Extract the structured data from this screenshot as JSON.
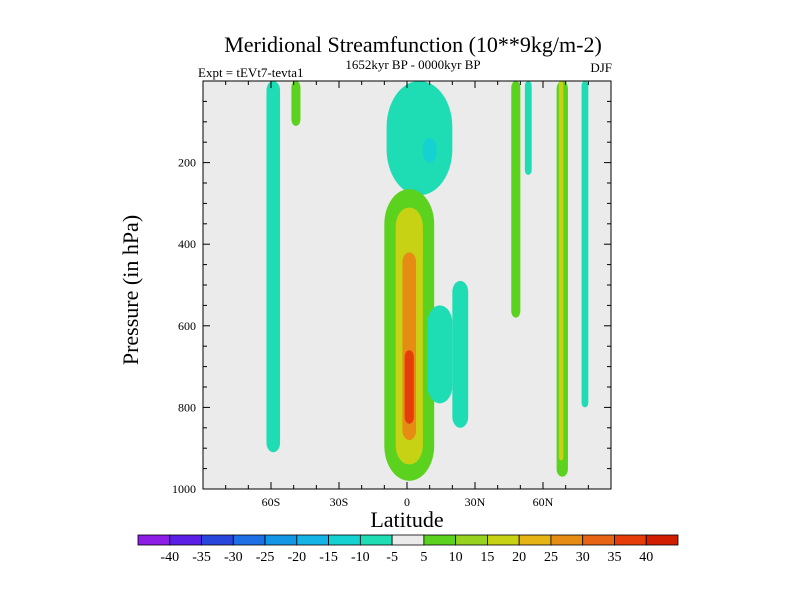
{
  "chart_data": {
    "type": "filled-contour",
    "title": "Meridional Streamfunction (10**9kg/m-2)",
    "left_label": "Expt = tEVt7-tevta1",
    "center_label": "1652kyr BP - 0000kyr BP",
    "right_label": "DJF",
    "xlabel": "Latitude",
    "ylabel": "Pressure (in hPa)",
    "x_range": [
      -90,
      90
    ],
    "y_range": [
      1000,
      0
    ],
    "x_ticks": [
      {
        "value": -60,
        "label": "60S"
      },
      {
        "value": -30,
        "label": "30S"
      },
      {
        "value": 0,
        "label": "0"
      },
      {
        "value": 30,
        "label": "30N"
      },
      {
        "value": 60,
        "label": "60N"
      }
    ],
    "y_ticks": [
      {
        "value": 200,
        "label": "200"
      },
      {
        "value": 400,
        "label": "400"
      },
      {
        "value": 600,
        "label": "600"
      },
      {
        "value": 800,
        "label": "800"
      },
      {
        "value": 1000,
        "label": "1000"
      }
    ],
    "colorbar": {
      "levels": [
        "-40",
        "-35",
        "-30",
        "-25",
        "-20",
        "-15",
        "-10",
        "-5",
        "5",
        "10",
        "15",
        "20",
        "25",
        "30",
        "35",
        "40"
      ],
      "colors": [
        "#8c1ee6",
        "#5a1ee6",
        "#2846dc",
        "#1e6ee6",
        "#1496e6",
        "#14b4e6",
        "#14d2d2",
        "#1edcb4",
        "#ebebeb",
        "#5ad21e",
        "#96d21e",
        "#c8d214",
        "#e6b414",
        "#e68c14",
        "#e66414",
        "#e63c0a",
        "#d21e00"
      ]
    },
    "features": [
      {
        "label": "Southern Hemisphere high-latitude column",
        "level": -5,
        "lat_range": [
          -62,
          -56
        ],
        "p_range": [
          0,
          910
        ]
      },
      {
        "label": "Southern Hemisphere upper patch",
        "level": 5,
        "lat_range": [
          -51,
          -47
        ],
        "p_range": [
          0,
          110
        ]
      },
      {
        "label": "Tropical upper cell",
        "level": -5,
        "lat_range": [
          -9,
          20
        ],
        "p_range": [
          0,
          280
        ]
      },
      {
        "label": "Tropical upper core",
        "level": -10,
        "lat_range": [
          7,
          13
        ],
        "p_range": [
          140,
          200
        ]
      },
      {
        "label": "Equatorial deep cell",
        "level": 5,
        "lat_range": [
          -10,
          12
        ],
        "p_range": [
          265,
          980
        ]
      },
      {
        "label": "Equatorial deep cell",
        "level": 15,
        "lat_range": [
          -5,
          7
        ],
        "p_range": [
          310,
          940
        ]
      },
      {
        "label": "Equatorial deep cell",
        "level": 25,
        "lat_range": [
          -2,
          4
        ],
        "p_range": [
          420,
          880
        ]
      },
      {
        "label": "Equatorial deep core",
        "level": 35,
        "lat_range": [
          -1,
          3
        ],
        "p_range": [
          660,
          840
        ]
      },
      {
        "label": "Subtropical patch",
        "level": -5,
        "lat_range": [
          9,
          20
        ],
        "p_range": [
          550,
          790
        ]
      },
      {
        "label": "Northern subtropical column",
        "level": -5,
        "lat_range": [
          20,
          27
        ],
        "p_range": [
          490,
          850
        ]
      },
      {
        "label": "Northern mid-latitude columns",
        "level": 5,
        "lat_range": [
          46,
          50
        ],
        "p_range": [
          0,
          580
        ]
      },
      {
        "label": "Northern mid-latitude column",
        "level": -5,
        "lat_range": [
          52,
          55
        ],
        "p_range": [
          0,
          230
        ]
      },
      {
        "label": "Northern high-latitude column",
        "level": 5,
        "lat_range": [
          66,
          71
        ],
        "p_range": [
          0,
          970
        ]
      },
      {
        "label": "Northern high-latitude core",
        "level": 15,
        "lat_range": [
          67,
          69
        ],
        "p_range": [
          0,
          930
        ]
      },
      {
        "label": "Northern polar column",
        "level": -5,
        "lat_range": [
          77,
          80
        ],
        "p_range": [
          0,
          800
        ]
      }
    ]
  }
}
